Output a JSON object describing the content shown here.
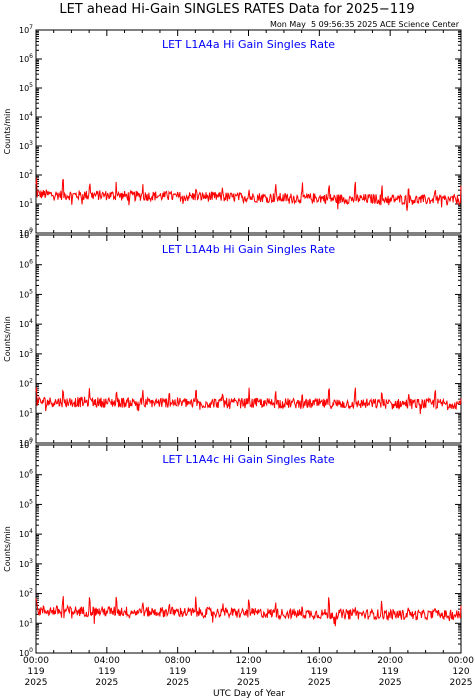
{
  "figure": {
    "title": "LET ahead Hi-Gain SINGLES RATES Data for 2025−119",
    "timestamp": "Mon May  5 09:56:35 2025 ACE Science Center",
    "xlabel": "UTC Day of Year"
  },
  "chart_data": [
    {
      "type": "line",
      "title": "LET L1A4a Hi Gain Singles Rate",
      "ylabel": "Counts/min",
      "yscale": "log",
      "ylim": [
        1,
        10000000
      ],
      "xlim": [
        0,
        24
      ],
      "x_unit": "hours UTC, day 119 of 2025",
      "series": [
        {
          "color": "#ff0000",
          "x": [
            0,
            1,
            2,
            3,
            4,
            5,
            6,
            7,
            8,
            9,
            10,
            11,
            12,
            13,
            14,
            15,
            16,
            17,
            18,
            19,
            20,
            21,
            22,
            23,
            24
          ],
          "values": [
            22,
            21,
            20,
            20,
            20,
            19,
            19,
            19,
            18,
            18,
            18,
            17,
            17,
            17,
            16,
            16,
            16,
            15,
            15,
            15,
            15,
            14,
            14,
            14,
            14
          ]
        }
      ]
    },
    {
      "type": "line",
      "title": "LET L1A4b Hi Gain Singles Rate",
      "ylabel": "Counts/min",
      "yscale": "log",
      "ylim": [
        1,
        10000000
      ],
      "xlim": [
        0,
        24
      ],
      "x_unit": "hours UTC, day 119 of 2025",
      "series": [
        {
          "color": "#ff0000",
          "x": [
            0,
            1,
            2,
            3,
            4,
            5,
            6,
            7,
            8,
            9,
            10,
            11,
            12,
            13,
            14,
            15,
            16,
            17,
            18,
            19,
            20,
            21,
            22,
            23,
            24
          ],
          "values": [
            25,
            24,
            24,
            24,
            23,
            23,
            23,
            23,
            23,
            22,
            22,
            22,
            22,
            22,
            22,
            21,
            21,
            21,
            21,
            21,
            21,
            21,
            21,
            21,
            21
          ]
        }
      ]
    },
    {
      "type": "line",
      "title": "LET L1A4c Hi Gain Singles Rate",
      "ylabel": "Counts/min",
      "yscale": "log",
      "ylim": [
        1,
        10000000
      ],
      "xlim": [
        0,
        24
      ],
      "x_unit": "hours UTC, day 119 of 2025",
      "series": [
        {
          "color": "#ff0000",
          "x": [
            0,
            1,
            2,
            3,
            4,
            5,
            6,
            7,
            8,
            9,
            10,
            11,
            12,
            13,
            14,
            15,
            16,
            17,
            18,
            19,
            20,
            21,
            22,
            23,
            24
          ],
          "values": [
            27,
            26,
            26,
            25,
            25,
            25,
            24,
            24,
            24,
            23,
            23,
            22,
            22,
            22,
            21,
            21,
            21,
            20,
            20,
            20,
            20,
            19,
            19,
            19,
            19
          ]
        }
      ]
    }
  ],
  "y_ticks": [
    {
      "base": "10",
      "exp": "0"
    },
    {
      "base": "10",
      "exp": "1"
    },
    {
      "base": "10",
      "exp": "2"
    },
    {
      "base": "10",
      "exp": "3"
    },
    {
      "base": "10",
      "exp": "4"
    },
    {
      "base": "10",
      "exp": "5"
    },
    {
      "base": "10",
      "exp": "6"
    },
    {
      "base": "10",
      "exp": "7"
    }
  ],
  "x_ticks": [
    {
      "time": "00:00",
      "doy": "119",
      "year": "2025"
    },
    {
      "time": "04:00",
      "doy": "119",
      "year": "2025"
    },
    {
      "time": "08:00",
      "doy": "119",
      "year": "2025"
    },
    {
      "time": "12:00",
      "doy": "119",
      "year": "2025"
    },
    {
      "time": "16:00",
      "doy": "119",
      "year": "2025"
    },
    {
      "time": "20:00",
      "doy": "119",
      "year": "2025"
    },
    {
      "time": "00:00",
      "doy": "120",
      "year": "2025"
    }
  ],
  "colors": {
    "data_line": "#ff0000",
    "panel_title": "#0000ff",
    "axes": "#000000"
  }
}
